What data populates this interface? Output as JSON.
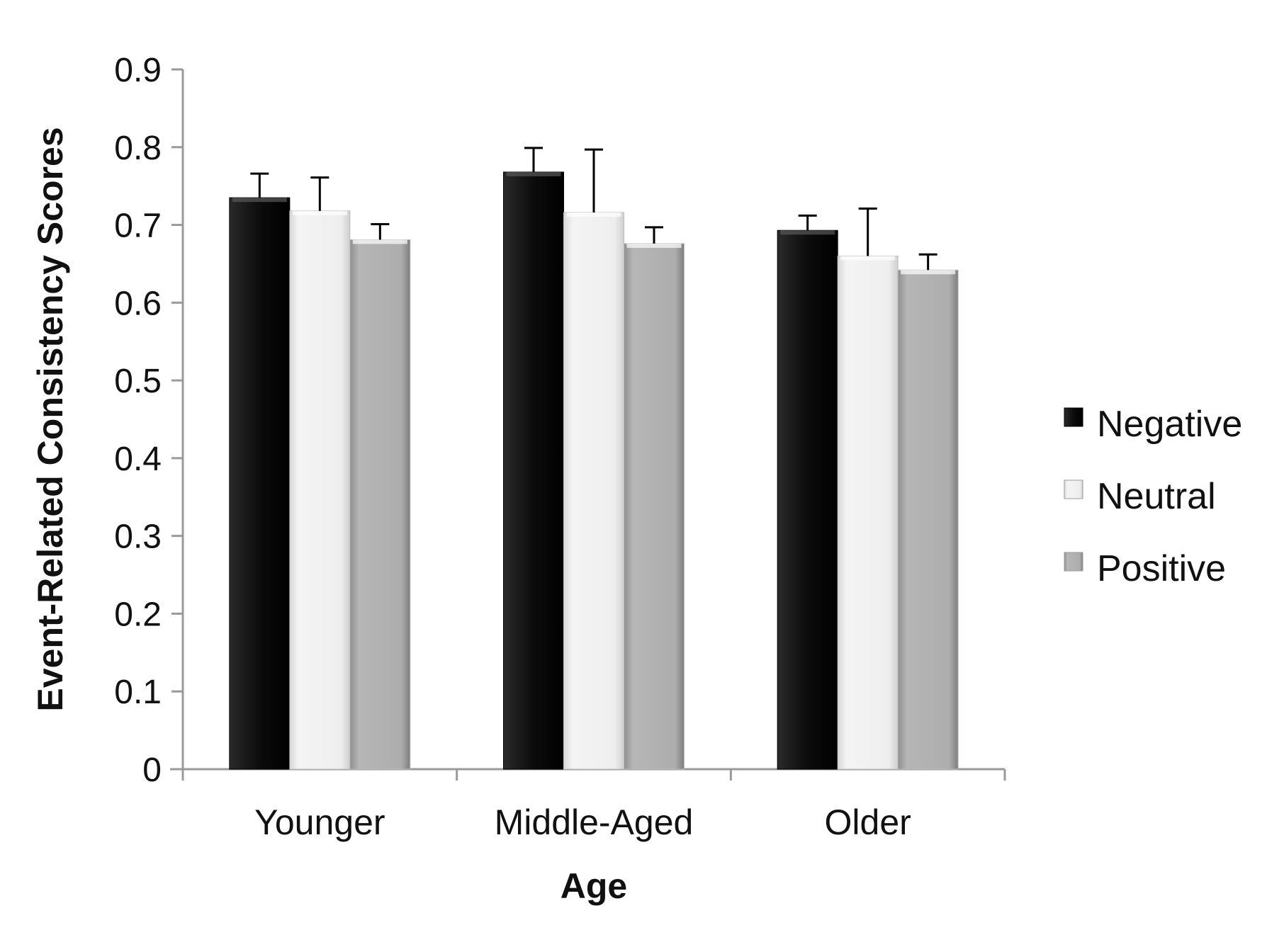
{
  "chart_data": {
    "type": "bar",
    "title": "",
    "xlabel": "Age",
    "ylabel": "Event-Related Consistency Scores",
    "categories": [
      "Younger",
      "Middle-Aged",
      "Older"
    ],
    "ylim": [
      0,
      0.9
    ],
    "yticks": [
      "0",
      "0.1",
      "0.2",
      "0.3",
      "0.4",
      "0.5",
      "0.6",
      "0.7",
      "0.8",
      "0.9"
    ],
    "grid": false,
    "legend_position": "right",
    "error_bars": "upper only",
    "series": [
      {
        "name": "Negative",
        "color": "#111111",
        "values": [
          0.735,
          0.768,
          0.693
        ],
        "errors": [
          0.031,
          0.031,
          0.019
        ]
      },
      {
        "name": "Neutral",
        "color": "#ececec",
        "values": [
          0.718,
          0.716,
          0.66
        ],
        "errors": [
          0.043,
          0.081,
          0.061
        ]
      },
      {
        "name": "Positive",
        "color": "#a8a8a8",
        "values": [
          0.681,
          0.676,
          0.642
        ],
        "errors": [
          0.02,
          0.021,
          0.02
        ]
      }
    ]
  }
}
